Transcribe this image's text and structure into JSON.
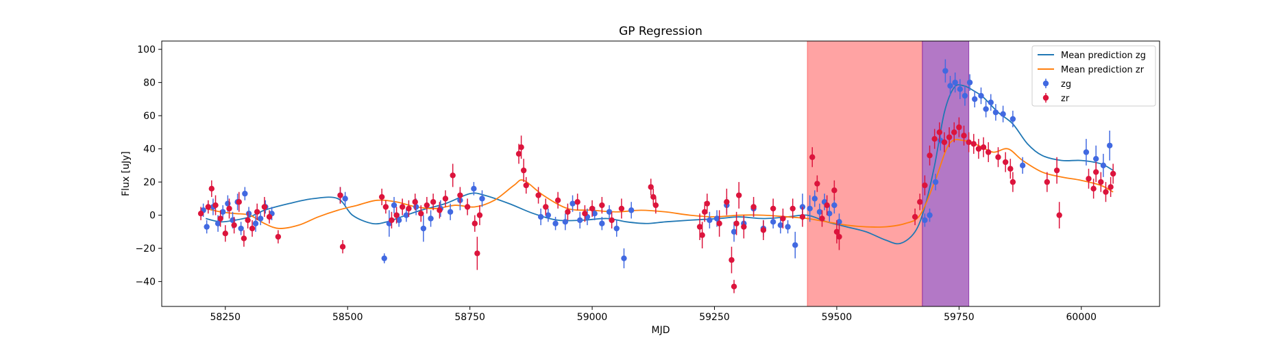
{
  "chart_data": {
    "type": "scatter",
    "title": "GP Regression",
    "xlabel": "MJD",
    "ylabel": "Flux [uJy]",
    "xlim": [
      58120,
      60160
    ],
    "ylim": [
      -55,
      105
    ],
    "xticks": [
      58250,
      58500,
      58750,
      59000,
      59250,
      59500,
      59750,
      60000
    ],
    "xtick_labels": [
      "58250",
      "58500",
      "58750",
      "59000",
      "59250",
      "59500",
      "59750",
      "60000"
    ],
    "yticks": [
      -40,
      -20,
      0,
      20,
      40,
      60,
      80,
      100
    ],
    "ytick_labels": [
      "−40",
      "−20",
      "0",
      "20",
      "40",
      "60",
      "80",
      "100"
    ],
    "grid": false,
    "legend_position": "top-right",
    "colors": {
      "mean_zg": "#1f77b4",
      "mean_zr": "#ff7f0e",
      "zg": "#4169e1",
      "zr": "#dc143c",
      "span_red": "#ff6666",
      "span_purple": "#9b30b0"
    },
    "spans": [
      {
        "x0": 59440,
        "x1": 59675,
        "color": "#ff6666",
        "alpha": 0.6
      },
      {
        "x0": 59675,
        "x1": 59770,
        "color": "#8b2fa8",
        "alpha": 0.65
      }
    ],
    "lines": [
      {
        "name": "Mean prediction zg",
        "color": "#1f77b4",
        "x": [
          58210,
          58240,
          58270,
          58300,
          58330,
          58380,
          58430,
          58480,
          58510,
          58550,
          58580,
          58610,
          58650,
          58700,
          58750,
          58780,
          58830,
          58880,
          58930,
          58980,
          59030,
          59070,
          59110,
          59150,
          59200,
          59260,
          59300,
          59350,
          59400,
          59440,
          59480,
          59520,
          59560,
          59600,
          59630,
          59660,
          59680,
          59700,
          59720,
          59740,
          59760,
          59780,
          59800,
          59830,
          59860,
          59890,
          59920,
          59960,
          60000,
          60040,
          60065
        ],
        "y": [
          -2,
          -4,
          -3,
          -1,
          3,
          7,
          10,
          10,
          0,
          -5,
          -4,
          -1,
          3,
          7,
          13,
          12,
          7,
          1,
          -3,
          -3,
          -2,
          -4,
          -5,
          -4,
          -3,
          -2,
          -1,
          -2,
          -1,
          0,
          -4,
          -7,
          -10,
          -15,
          -17,
          -10,
          5,
          30,
          62,
          77,
          78,
          75,
          71,
          62,
          55,
          43,
          36,
          33,
          33,
          31,
          27
        ]
      },
      {
        "name": "Mean prediction zr",
        "color": "#ff7f0e",
        "x": [
          58210,
          58240,
          58270,
          58300,
          58330,
          58360,
          58400,
          58440,
          58480,
          58520,
          58560,
          58600,
          58640,
          58680,
          58720,
          58760,
          58800,
          58840,
          58860,
          58900,
          58950,
          59000,
          59050,
          59100,
          59150,
          59200,
          59250,
          59300,
          59350,
          59400,
          59440,
          59480,
          59520,
          59560,
          59600,
          59640,
          59670,
          59700,
          59730,
          59760,
          59790,
          59820,
          59850,
          59880,
          59920,
          59960,
          60000,
          60040,
          60065
        ],
        "y": [
          4,
          2,
          1,
          0,
          -5,
          -8,
          -6,
          -1,
          3,
          6,
          9,
          8,
          5,
          4,
          6,
          5,
          9,
          18,
          21,
          12,
          4,
          3,
          2,
          3,
          2,
          0,
          -1,
          0,
          0,
          -1,
          -2,
          -4,
          -6,
          -7,
          -7,
          -5,
          0,
          20,
          43,
          45,
          42,
          38,
          40,
          33,
          26,
          23,
          21,
          18,
          14
        ]
      }
    ],
    "series": [
      {
        "name": "zg",
        "color": "#4169e1",
        "x": [
          58205,
          58212,
          58225,
          58235,
          58245,
          58255,
          58265,
          58275,
          58282,
          58290,
          58298,
          58312,
          58322,
          58332,
          58345,
          58485,
          58495,
          58575,
          58585,
          58595,
          58605,
          58620,
          58640,
          58655,
          58670,
          58690,
          58710,
          58730,
          58758,
          58775,
          58895,
          58910,
          58925,
          58945,
          58960,
          58975,
          58990,
          59005,
          59020,
          59035,
          59050,
          59065,
          59080,
          59240,
          59255,
          59275,
          59290,
          59310,
          59330,
          59350,
          59370,
          59385,
          59400,
          59415,
          59430,
          59445,
          59455,
          59465,
          59475,
          59485,
          59495,
          59505,
          59680,
          59690,
          59702,
          59712,
          59722,
          59732,
          59742,
          59752,
          59762,
          59772,
          59782,
          59795,
          59805,
          59815,
          59825,
          59840,
          59860,
          59880,
          60010,
          60030,
          60045,
          60058
        ],
        "y": [
          3,
          -7,
          5,
          -5,
          2,
          7,
          -3,
          8,
          -8,
          13,
          1,
          -5,
          -2,
          5,
          1,
          12,
          10,
          -26,
          -5,
          6,
          -3,
          0,
          5,
          -8,
          -2,
          4,
          2,
          9,
          16,
          10,
          -1,
          0,
          -5,
          -4,
          7,
          -3,
          -1,
          1,
          -5,
          2,
          -8,
          -26,
          3,
          -3,
          -2,
          6,
          -10,
          -5,
          4,
          -8,
          -4,
          -6,
          -7,
          -18,
          5,
          4,
          10,
          2,
          8,
          1,
          6,
          -4,
          -3,
          0,
          20,
          45,
          87,
          78,
          80,
          76,
          72,
          80,
          70,
          72,
          64,
          68,
          62,
          61,
          58,
          30,
          38,
          34,
          30,
          42
        ],
        "err": [
          4,
          4,
          5,
          5,
          4,
          5,
          5,
          5,
          4,
          4,
          4,
          5,
          4,
          4,
          4,
          5,
          4,
          3,
          8,
          5,
          4,
          4,
          5,
          8,
          5,
          5,
          5,
          6,
          4,
          5,
          5,
          4,
          4,
          5,
          5,
          5,
          5,
          4,
          4,
          4,
          5,
          6,
          5,
          5,
          5,
          5,
          6,
          4,
          5,
          5,
          4,
          5,
          4,
          8,
          8,
          8,
          5,
          5,
          5,
          5,
          5,
          5,
          4,
          4,
          5,
          6,
          7,
          6,
          6,
          6,
          6,
          5,
          5,
          5,
          5,
          5,
          5,
          5,
          5,
          5,
          8,
          8,
          7,
          9
        ]
      },
      {
        "name": "zr",
        "color": "#dc143c",
        "x": [
          58200,
          58215,
          58222,
          58230,
          58240,
          58250,
          58258,
          58268,
          58278,
          58288,
          58296,
          58305,
          58315,
          58330,
          58340,
          58358,
          58485,
          58490,
          58570,
          58578,
          58590,
          58600,
          58612,
          58625,
          58638,
          58650,
          58662,
          58675,
          58688,
          58700,
          58715,
          58730,
          58745,
          58760,
          58765,
          58770,
          58850,
          58855,
          58860,
          58865,
          58890,
          58905,
          58930,
          58950,
          58970,
          58985,
          59000,
          59020,
          59040,
          59060,
          59120,
          59125,
          59130,
          59220,
          59225,
          59230,
          59235,
          59260,
          59275,
          59285,
          59290,
          59295,
          59300,
          59310,
          59330,
          59350,
          59370,
          59390,
          59410,
          59430,
          59450,
          59460,
          59470,
          59480,
          59495,
          59500,
          59505,
          59660,
          59670,
          59680,
          59690,
          59700,
          59710,
          59720,
          59730,
          59740,
          59750,
          59760,
          59770,
          59780,
          59790,
          59800,
          59810,
          59830,
          59845,
          59855,
          59860,
          59930,
          59950,
          59955,
          60015,
          60025,
          60030,
          60040,
          60050,
          60060,
          60065
        ],
        "y": [
          1,
          5,
          16,
          6,
          -2,
          -11,
          4,
          -6,
          8,
          -14,
          -3,
          -8,
          2,
          5,
          -1,
          -13,
          12,
          -19,
          11,
          5,
          -3,
          0,
          5,
          4,
          8,
          1,
          6,
          8,
          3,
          10,
          24,
          12,
          5,
          -5,
          -23,
          0,
          37,
          41,
          27,
          18,
          12,
          5,
          9,
          2,
          8,
          1,
          4,
          6,
          -3,
          4,
          17,
          11,
          6,
          -7,
          -12,
          2,
          7,
          -5,
          8,
          -27,
          -43,
          -5,
          12,
          -7,
          5,
          -9,
          4,
          -2,
          4,
          -1,
          35,
          19,
          -2,
          6,
          15,
          -10,
          -13,
          -1,
          8,
          18,
          36,
          46,
          50,
          44,
          47,
          50,
          53,
          48,
          44,
          43,
          40,
          41,
          38,
          35,
          32,
          28,
          20,
          20,
          27,
          0,
          22,
          16,
          26,
          20,
          14,
          17,
          25
        ],
        "err": [
          4,
          4,
          5,
          6,
          5,
          5,
          6,
          5,
          6,
          5,
          5,
          5,
          5,
          6,
          4,
          4,
          5,
          4,
          5,
          4,
          5,
          5,
          5,
          5,
          5,
          5,
          5,
          5,
          5,
          5,
          7,
          5,
          5,
          5,
          10,
          6,
          6,
          7,
          7,
          5,
          5,
          5,
          5,
          5,
          5,
          5,
          5,
          5,
          5,
          6,
          5,
          5,
          5,
          8,
          8,
          6,
          6,
          8,
          8,
          8,
          4,
          7,
          8,
          7,
          6,
          6,
          6,
          6,
          6,
          6,
          6,
          5,
          5,
          6,
          6,
          7,
          8,
          5,
          5,
          6,
          6,
          6,
          6,
          6,
          6,
          6,
          6,
          6,
          6,
          6,
          6,
          6,
          6,
          6,
          6,
          6,
          6,
          6,
          8,
          8,
          6,
          6,
          6,
          6,
          6,
          6,
          6
        ]
      }
    ],
    "legend": [
      {
        "label": "Mean prediction zg",
        "kind": "line",
        "color": "#1f77b4"
      },
      {
        "label": "Mean prediction zr",
        "kind": "line",
        "color": "#ff7f0e"
      },
      {
        "label": "zg",
        "kind": "marker",
        "color": "#4169e1"
      },
      {
        "label": "zr",
        "kind": "marker",
        "color": "#dc143c"
      }
    ]
  }
}
